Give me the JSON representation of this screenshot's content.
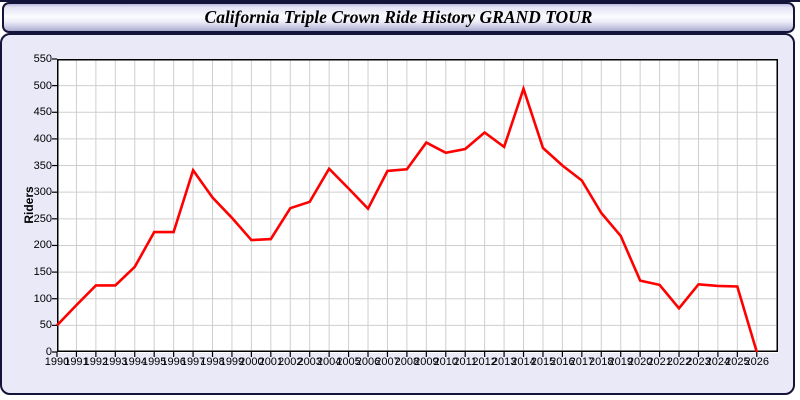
{
  "title": "California Triple Crown Ride History GRAND TOUR",
  "colors": {
    "line": "#ff0000",
    "grid": "#cfcfcf",
    "frame": "#000000",
    "panel_bg": "#e9e9f8",
    "plot_bg": "#ffffff",
    "border": "#14143a"
  },
  "chart_data": {
    "type": "line",
    "title": "California Triple Crown Ride History GRAND TOUR",
    "xlabel": "",
    "ylabel": "Riders",
    "categories": [
      "1990",
      "1991",
      "1992",
      "1993",
      "1994",
      "1995",
      "1996",
      "1997",
      "1998",
      "1999",
      "2000",
      "2001",
      "2002",
      "2003",
      "2004",
      "2005",
      "2006",
      "2007",
      "2008",
      "2009",
      "2010",
      "2011",
      "2012",
      "2013",
      "2014",
      "2015",
      "2016",
      "2017",
      "2018",
      "2019",
      "2020",
      "2021",
      "2022",
      "2023",
      "2024",
      "2025",
      "2026"
    ],
    "values": [
      50,
      88,
      125,
      125,
      160,
      225,
      225,
      341,
      290,
      252,
      210,
      212,
      270,
      282,
      344,
      307,
      269,
      340,
      343,
      393,
      374,
      381,
      412,
      385,
      494,
      383,
      350,
      322,
      261,
      218,
      134,
      126,
      82,
      127,
      124,
      123,
      0
    ],
    "ylim": [
      0,
      550
    ],
    "ytick_step": 50,
    "y_ticks": [
      0,
      50,
      100,
      150,
      200,
      250,
      300,
      350,
      400,
      450,
      500,
      550
    ],
    "grid": true,
    "legend": null
  }
}
